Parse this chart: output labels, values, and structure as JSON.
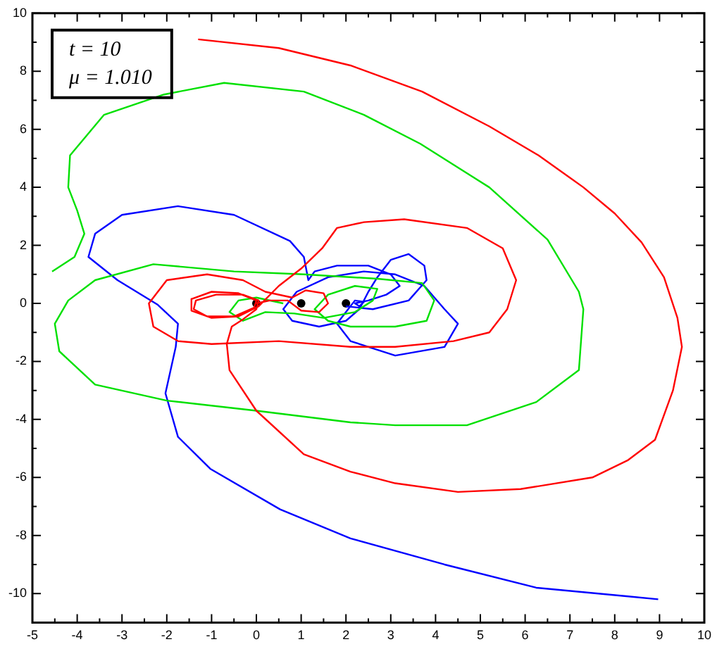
{
  "chart_data": {
    "type": "line",
    "annotations": [
      "t = 10",
      "μ = 1.010"
    ],
    "xlim": [
      -5,
      10
    ],
    "ylim": [
      -11,
      10
    ],
    "xticks": [
      -5,
      {
        "value": -4.5,
        "label": null
      },
      -4,
      {
        "value": -3.5,
        "label": null
      },
      -3,
      {
        "value": -2.5,
        "label": null
      },
      -2,
      {
        "value": -1.5,
        "label": null
      },
      -1,
      {
        "value": -0.5,
        "label": null
      },
      0,
      {
        "value": 0.5,
        "label": null
      },
      1,
      {
        "value": 1.5,
        "label": null
      },
      2,
      {
        "value": 2.5,
        "label": null
      },
      3,
      {
        "value": 3.5,
        "label": null
      },
      4,
      {
        "value": 4.5,
        "label": null
      },
      5,
      {
        "value": 5.5,
        "label": null
      },
      6,
      {
        "value": 6.5,
        "label": null
      },
      7,
      {
        "value": 7.5,
        "label": null
      },
      8,
      {
        "value": 8.5,
        "label": null
      },
      9,
      {
        "value": 9.5,
        "label": null
      },
      10
    ],
    "yticks": [
      -10,
      {
        "value": -9,
        "label": null
      },
      -8,
      {
        "value": -7,
        "label": null
      },
      -6,
      {
        "value": -5,
        "label": null
      },
      -4,
      {
        "value": -3,
        "label": null
      },
      -2,
      {
        "value": -1,
        "label": null
      },
      0,
      {
        "value": 1,
        "label": null
      },
      2,
      {
        "value": 3,
        "label": null
      },
      4,
      {
        "value": 5,
        "label": null
      },
      6,
      {
        "value": 7,
        "label": null
      },
      8,
      {
        "value": 9,
        "label": null
      },
      10
    ],
    "legend": false,
    "marker": "none",
    "line_style": "solid",
    "series": [
      {
        "color": "#ff0000",
        "x": [
          -1.3,
          0.5,
          2.1,
          3.7,
          5.2,
          6.3,
          7.3,
          8.0,
          8.6,
          9.1,
          9.4,
          9.5,
          9.3,
          8.9,
          8.3,
          7.5,
          5.9,
          4.5,
          3.1,
          2.1,
          1.06,
          0,
          -0.6,
          -0.66,
          -0.55,
          -0.3,
          0,
          0.05,
          -0.3,
          -0.9,
          -1.35,
          -1.4,
          -1.1,
          -0.5,
          -0.05,
          0,
          -0.4,
          -1.0,
          -1.45,
          -1.45,
          -1.0,
          -0.4,
          0.05,
          0.5,
          1.0,
          1.47,
          1.8,
          2.4,
          3.3,
          4.7,
          5.5,
          5.8,
          5.6,
          5.2,
          4.4,
          3.1,
          2.1,
          0.5,
          -1.0,
          -1.75,
          -2.3,
          -2.4,
          -2.0,
          -1.1,
          -0.3,
          0.2,
          0.8,
          1.1,
          1.5,
          1.6,
          1.4,
          1.0,
          0.7,
          0.3,
          0
        ],
        "values": [
          9.1,
          8.8,
          8.2,
          7.3,
          6.1,
          5.1,
          4.0,
          3.1,
          2.1,
          0.9,
          -0.5,
          -1.5,
          -3.0,
          -4.7,
          -5.4,
          -6.0,
          -6.4,
          -6.5,
          -6.2,
          -5.8,
          -5.2,
          -3.7,
          -2.3,
          -1.4,
          -0.8,
          -0.55,
          -0.2,
          0.1,
          0.3,
          0.3,
          0.1,
          -0.2,
          -0.45,
          -0.45,
          -0.15,
          0.1,
          0.35,
          0.4,
          0.15,
          -0.25,
          -0.5,
          -0.45,
          -0.1,
          0.6,
          1.2,
          1.9,
          2.6,
          2.8,
          2.9,
          2.6,
          1.9,
          0.8,
          -0.2,
          -1.0,
          -1.3,
          -1.5,
          -1.5,
          -1.3,
          -1.4,
          -1.3,
          -0.8,
          0,
          0.8,
          1.0,
          0.8,
          0.4,
          0.2,
          0.45,
          0.35,
          0,
          -0.3,
          -0.25,
          0.1,
          0.1,
          0
        ]
      },
      {
        "color": "#00e000",
        "x": [
          -4.56,
          -4.06,
          -3.84,
          -4.0,
          -4.2,
          -4.16,
          -3.4,
          -2.06,
          -0.72,
          1.06,
          2.4,
          3.66,
          5.2,
          6.5,
          7.2,
          7.3,
          7.2,
          6.25,
          4.7,
          3.1,
          2.1,
          0,
          -2.0,
          -3.6,
          -4.4,
          -4.5,
          -4.2,
          -3.6,
          -2.3,
          -0.5,
          1.06,
          2.7,
          3.7,
          3.97,
          3.8,
          3.1,
          2.1,
          1.6,
          1.3,
          1.6,
          2.2,
          2.7,
          2.6,
          2.2,
          1.5,
          0.85,
          0.2,
          -0.3,
          -0.6,
          -0.4,
          0,
          0.6
        ],
        "values": [
          1.1,
          1.6,
          2.4,
          3.2,
          4.0,
          5.1,
          6.5,
          7.2,
          7.6,
          7.3,
          6.5,
          5.5,
          4.0,
          2.2,
          0.4,
          -0.2,
          -2.3,
          -3.4,
          -4.2,
          -4.2,
          -4.1,
          -3.7,
          -3.35,
          -2.8,
          -1.65,
          -0.7,
          0.1,
          0.8,
          1.35,
          1.1,
          1.0,
          0.85,
          0.7,
          0.1,
          -0.6,
          -0.8,
          -0.8,
          -0.6,
          -0.2,
          0.3,
          0.6,
          0.5,
          0.1,
          -0.3,
          -0.5,
          -0.35,
          -0.3,
          -0.6,
          -0.3,
          0.1,
          0.2,
          0
        ]
      },
      {
        "color": "#0000ff",
        "x": [
          8.97,
          8.3,
          6.25,
          4.2,
          2.1,
          0.53,
          -1.03,
          -1.75,
          -2.03,
          -1.8,
          -1.75,
          -2.2,
          -3.1,
          -3.75,
          -3.6,
          -3.0,
          -1.75,
          -0.5,
          0.75,
          1.06,
          1.16,
          1.3,
          1.8,
          2.5,
          3.0,
          3.2,
          2.9,
          2.5,
          2.2,
          2.3,
          2.4,
          2.2,
          2.0,
          1.8,
          2.1,
          3.1,
          4.2,
          4.5,
          4.2,
          3.75,
          3.1,
          2.4,
          1.6,
          0.9,
          0.6,
          0.8,
          1.4,
          2.0,
          2.3,
          2.5,
          2.7,
          3.0,
          3.4,
          3.75,
          3.8,
          3.4,
          2.6,
          2.0
        ],
        "values": [
          -10.2,
          -10.1,
          -9.8,
          -9.0,
          -8.1,
          -7.1,
          -5.7,
          -4.6,
          -3.1,
          -1.5,
          -0.7,
          -0.05,
          0.8,
          1.6,
          2.4,
          3.05,
          3.35,
          3.05,
          2.15,
          1.6,
          0.8,
          1.1,
          1.3,
          1.3,
          1.0,
          0.6,
          0.3,
          0.1,
          0,
          -0.1,
          0.05,
          0.1,
          -0.3,
          -0.7,
          -1.3,
          -1.8,
          -1.5,
          -0.7,
          -0.2,
          0.6,
          1.0,
          1.1,
          0.9,
          0.4,
          -0.2,
          -0.6,
          -0.8,
          -0.6,
          -0.2,
          0.4,
          0.9,
          1.5,
          1.7,
          1.3,
          0.8,
          0.1,
          -0.2,
          -0.1
        ]
      },
      {
        "type": "scatter",
        "marker": "circle",
        "color": "#000000",
        "x": [
          0,
          1,
          2
        ],
        "values": [
          0,
          0,
          0
        ]
      }
    ]
  }
}
